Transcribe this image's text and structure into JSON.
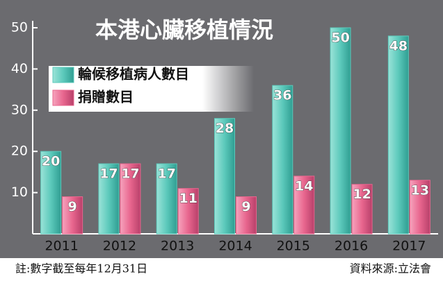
{
  "chart_data": {
    "type": "bar",
    "title": "本港心臟移植情況",
    "categories": [
      "2011",
      "2012",
      "2013",
      "2014",
      "2015",
      "2016",
      "2017"
    ],
    "series": [
      {
        "name": "輪候移植病人數目",
        "color": "#5cc9bb",
        "values": [
          20,
          17,
          17,
          28,
          36,
          50,
          48
        ]
      },
      {
        "name": "捐贈數目",
        "color": "#e8668e",
        "values": [
          9,
          17,
          11,
          9,
          14,
          12,
          13
        ]
      }
    ],
    "ylim": [
      0,
      50
    ],
    "yticks": [
      10,
      20,
      30,
      40,
      50
    ],
    "grid": false,
    "note": "註:數字截至每年12月31日",
    "source": "資料來源:立法會"
  }
}
